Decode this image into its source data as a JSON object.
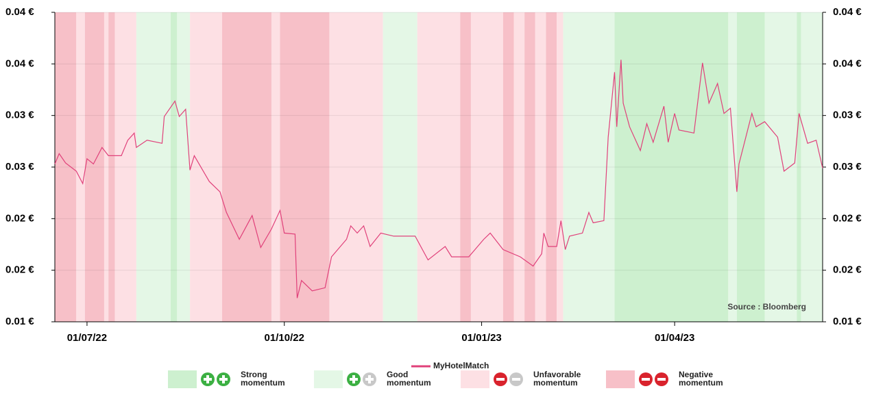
{
  "chart_data": {
    "type": "line",
    "annotation": "Source : Bloomberg",
    "xlim": [
      "16/06/22",
      "09/06/23"
    ],
    "xticks": [
      "01/07/22",
      "01/10/22",
      "01/01/23",
      "01/04/23"
    ],
    "ylim": [
      0.015,
      0.045
    ],
    "yticks": [
      {
        "value": 0.015,
        "label": "0.01 €"
      },
      {
        "value": 0.02,
        "label": "0.02 €"
      },
      {
        "value": 0.025,
        "label": "0.02 €"
      },
      {
        "value": 0.03,
        "label": "0.03 €"
      },
      {
        "value": 0.035,
        "label": "0.03 €"
      },
      {
        "value": 0.04,
        "label": "0.04 €"
      },
      {
        "value": 0.045,
        "label": "0.04 €"
      }
    ],
    "grid": true,
    "x": [
      "16/06/22",
      "18/06/22",
      "21/06/22",
      "26/06/22",
      "29/06/22",
      "01/07/22",
      "04/07/22",
      "08/07/22",
      "11/07/22",
      "17/07/22",
      "20/07/22",
      "23/07/22",
      "24/07/22",
      "29/07/22",
      "05/08/22",
      "06/08/22",
      "11/08/22",
      "13/08/22",
      "16/08/22",
      "18/08/22",
      "20/08/22",
      "27/08/22",
      "01/09/22",
      "04/09/22",
      "10/09/22",
      "16/09/22",
      "20/09/22",
      "25/09/22",
      "29/09/22",
      "01/10/22",
      "06/10/22",
      "07/10/22",
      "09/10/22",
      "14/10/22",
      "20/10/22",
      "23/10/22",
      "30/10/22",
      "01/11/22",
      "04/11/22",
      "07/11/22",
      "10/11/22",
      "15/11/22",
      "21/11/22",
      "01/12/22",
      "07/12/22",
      "15/12/22",
      "18/12/22",
      "26/12/22",
      "02/01/23",
      "05/01/23",
      "11/01/23",
      "19/01/23",
      "25/01/23",
      "29/01/23",
      "30/01/23",
      "01/02/23",
      "05/02/23",
      "07/02/23",
      "09/02/23",
      "11/02/23",
      "17/02/23",
      "20/02/23",
      "22/02/23",
      "27/02/23",
      "01/03/23",
      "04/03/23",
      "05/03/23",
      "07/03/23",
      "08/03/23",
      "11/03/23",
      "16/03/23",
      "19/03/23",
      "22/03/23",
      "27/03/23",
      "29/03/23",
      "01/04/23",
      "03/04/23",
      "10/04/23",
      "14/04/23",
      "17/04/23",
      "21/04/23",
      "24/04/23",
      "27/04/23",
      "30/04/23",
      "01/05/23",
      "07/05/23",
      "09/05/23",
      "13/05/23",
      "19/05/23",
      "22/05/23",
      "27/05/23",
      "29/05/23",
      "02/06/23",
      "06/06/23",
      "09/06/23"
    ],
    "series": [
      {
        "name": "MyHotelMatch",
        "color": "#e0407a",
        "values": [
          0.0303,
          0.0313,
          0.0304,
          0.0296,
          0.0284,
          0.0308,
          0.0303,
          0.0319,
          0.0311,
          0.0311,
          0.0326,
          0.0333,
          0.0319,
          0.0326,
          0.0323,
          0.0349,
          0.0364,
          0.0349,
          0.0356,
          0.0297,
          0.0311,
          0.0286,
          0.0276,
          0.0256,
          0.023,
          0.0253,
          0.0222,
          0.024,
          0.0258,
          0.0236,
          0.0235,
          0.0173,
          0.019,
          0.018,
          0.0183,
          0.0213,
          0.023,
          0.0243,
          0.0236,
          0.0243,
          0.0223,
          0.0236,
          0.0233,
          0.0233,
          0.021,
          0.0223,
          0.0213,
          0.0213,
          0.023,
          0.0236,
          0.022,
          0.0213,
          0.0204,
          0.0216,
          0.0236,
          0.0223,
          0.0223,
          0.0248,
          0.022,
          0.0233,
          0.0236,
          0.0256,
          0.0246,
          0.0248,
          0.0329,
          0.0392,
          0.0339,
          0.0404,
          0.0362,
          0.0339,
          0.0316,
          0.0342,
          0.0324,
          0.0359,
          0.0324,
          0.0352,
          0.0336,
          0.0333,
          0.0401,
          0.0362,
          0.0381,
          0.0352,
          0.0357,
          0.0276,
          0.0303,
          0.0352,
          0.0339,
          0.0344,
          0.0329,
          0.0296,
          0.0304,
          0.0352,
          0.0323,
          0.0326,
          0.0299
        ]
      }
    ],
    "legend": [
      {
        "label": "Strong momentum",
        "color": "#cdf0cf"
      },
      {
        "label": "Good momentum",
        "color": "#e4f7e6"
      },
      {
        "label": "Unfavorable momentum",
        "color": "#fde0e4"
      },
      {
        "label": "Negative momentum",
        "color": "#f7c0c8"
      }
    ],
    "bands": [
      {
        "start": "16/06/22",
        "end": "26/06/22",
        "legend": 3
      },
      {
        "start": "26/06/22",
        "end": "30/06/22",
        "legend": 2
      },
      {
        "start": "30/06/22",
        "end": "09/07/22",
        "legend": 3
      },
      {
        "start": "09/07/22",
        "end": "11/07/22",
        "legend": 2
      },
      {
        "start": "11/07/22",
        "end": "14/07/22",
        "legend": 3
      },
      {
        "start": "14/07/22",
        "end": "24/07/22",
        "legend": 2
      },
      {
        "start": "24/07/22",
        "end": "09/08/22",
        "legend": 1
      },
      {
        "start": "09/08/22",
        "end": "12/08/22",
        "legend": 0
      },
      {
        "start": "12/08/22",
        "end": "18/08/22",
        "legend": 1
      },
      {
        "start": "18/08/22",
        "end": "02/09/22",
        "legend": 2
      },
      {
        "start": "02/09/22",
        "end": "25/09/22",
        "legend": 3
      },
      {
        "start": "25/09/22",
        "end": "29/09/22",
        "legend": 2
      },
      {
        "start": "29/09/22",
        "end": "22/10/22",
        "legend": 3
      },
      {
        "start": "22/10/22",
        "end": "16/11/22",
        "legend": 2
      },
      {
        "start": "16/11/22",
        "end": "02/12/22",
        "legend": 1
      },
      {
        "start": "02/12/22",
        "end": "22/12/22",
        "legend": 2
      },
      {
        "start": "22/12/22",
        "end": "27/12/22",
        "legend": 3
      },
      {
        "start": "27/12/22",
        "end": "11/01/23",
        "legend": 2
      },
      {
        "start": "11/01/23",
        "end": "16/01/23",
        "legend": 3
      },
      {
        "start": "16/01/23",
        "end": "21/01/23",
        "legend": 2
      },
      {
        "start": "21/01/23",
        "end": "26/01/23",
        "legend": 3
      },
      {
        "start": "26/01/23",
        "end": "31/01/23",
        "legend": 2
      },
      {
        "start": "31/01/23",
        "end": "05/02/23",
        "legend": 3
      },
      {
        "start": "05/02/23",
        "end": "08/02/23",
        "legend": 2
      },
      {
        "start": "08/02/23",
        "end": "04/03/23",
        "legend": 1
      },
      {
        "start": "04/03/23",
        "end": "26/04/23",
        "legend": 0
      },
      {
        "start": "26/04/23",
        "end": "30/04/23",
        "legend": 1
      },
      {
        "start": "30/04/23",
        "end": "13/05/23",
        "legend": 0
      },
      {
        "start": "13/05/23",
        "end": "28/05/23",
        "legend": 1
      },
      {
        "start": "28/05/23",
        "end": "30/05/23",
        "legend": 0
      },
      {
        "start": "30/05/23",
        "end": "09/06/23",
        "legend": 1
      }
    ]
  }
}
